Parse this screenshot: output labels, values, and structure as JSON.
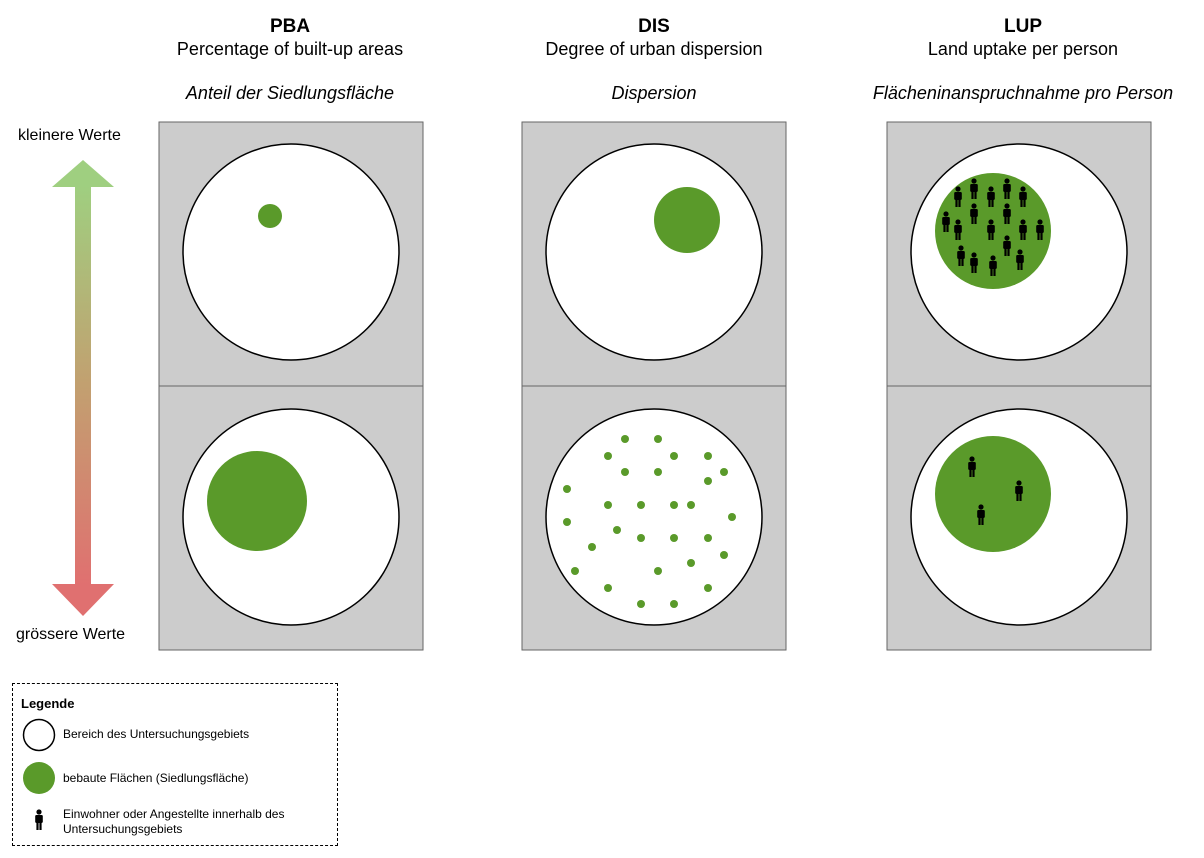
{
  "columns": [
    {
      "code": "PBA",
      "name": "Percentage of built-up areas",
      "name_de": "Anteil der Siedlungsfläche"
    },
    {
      "code": "DIS",
      "name": "Degree of urban dispersion",
      "name_de": "Dispersion"
    },
    {
      "code": "LUP",
      "name": "Land uptake per person",
      "name_de": "Flächeninanspruchnahme pro Person"
    }
  ],
  "axis": {
    "top_label": "kleinere Werte",
    "bottom_label": "grössere Werte"
  },
  "legend": {
    "title": "Legende",
    "items": [
      {
        "symbol": "white-circle",
        "label": "Bereich des Untersuchungsgebiets"
      },
      {
        "symbol": "green-circle",
        "label": "bebaute Flächen (Siedlungsfläche)"
      },
      {
        "symbol": "person-icon",
        "label_line1": "Einwohner oder Angestellte innerhalb des",
        "label_line2": "Untersuchungsgebiets"
      }
    ]
  },
  "colors": {
    "panel": "#cccccc",
    "panel_border": "#666666",
    "built_up": "#5a9a2a",
    "arrow_top": "#9fcf80",
    "arrow_bottom": "#e07070"
  }
}
